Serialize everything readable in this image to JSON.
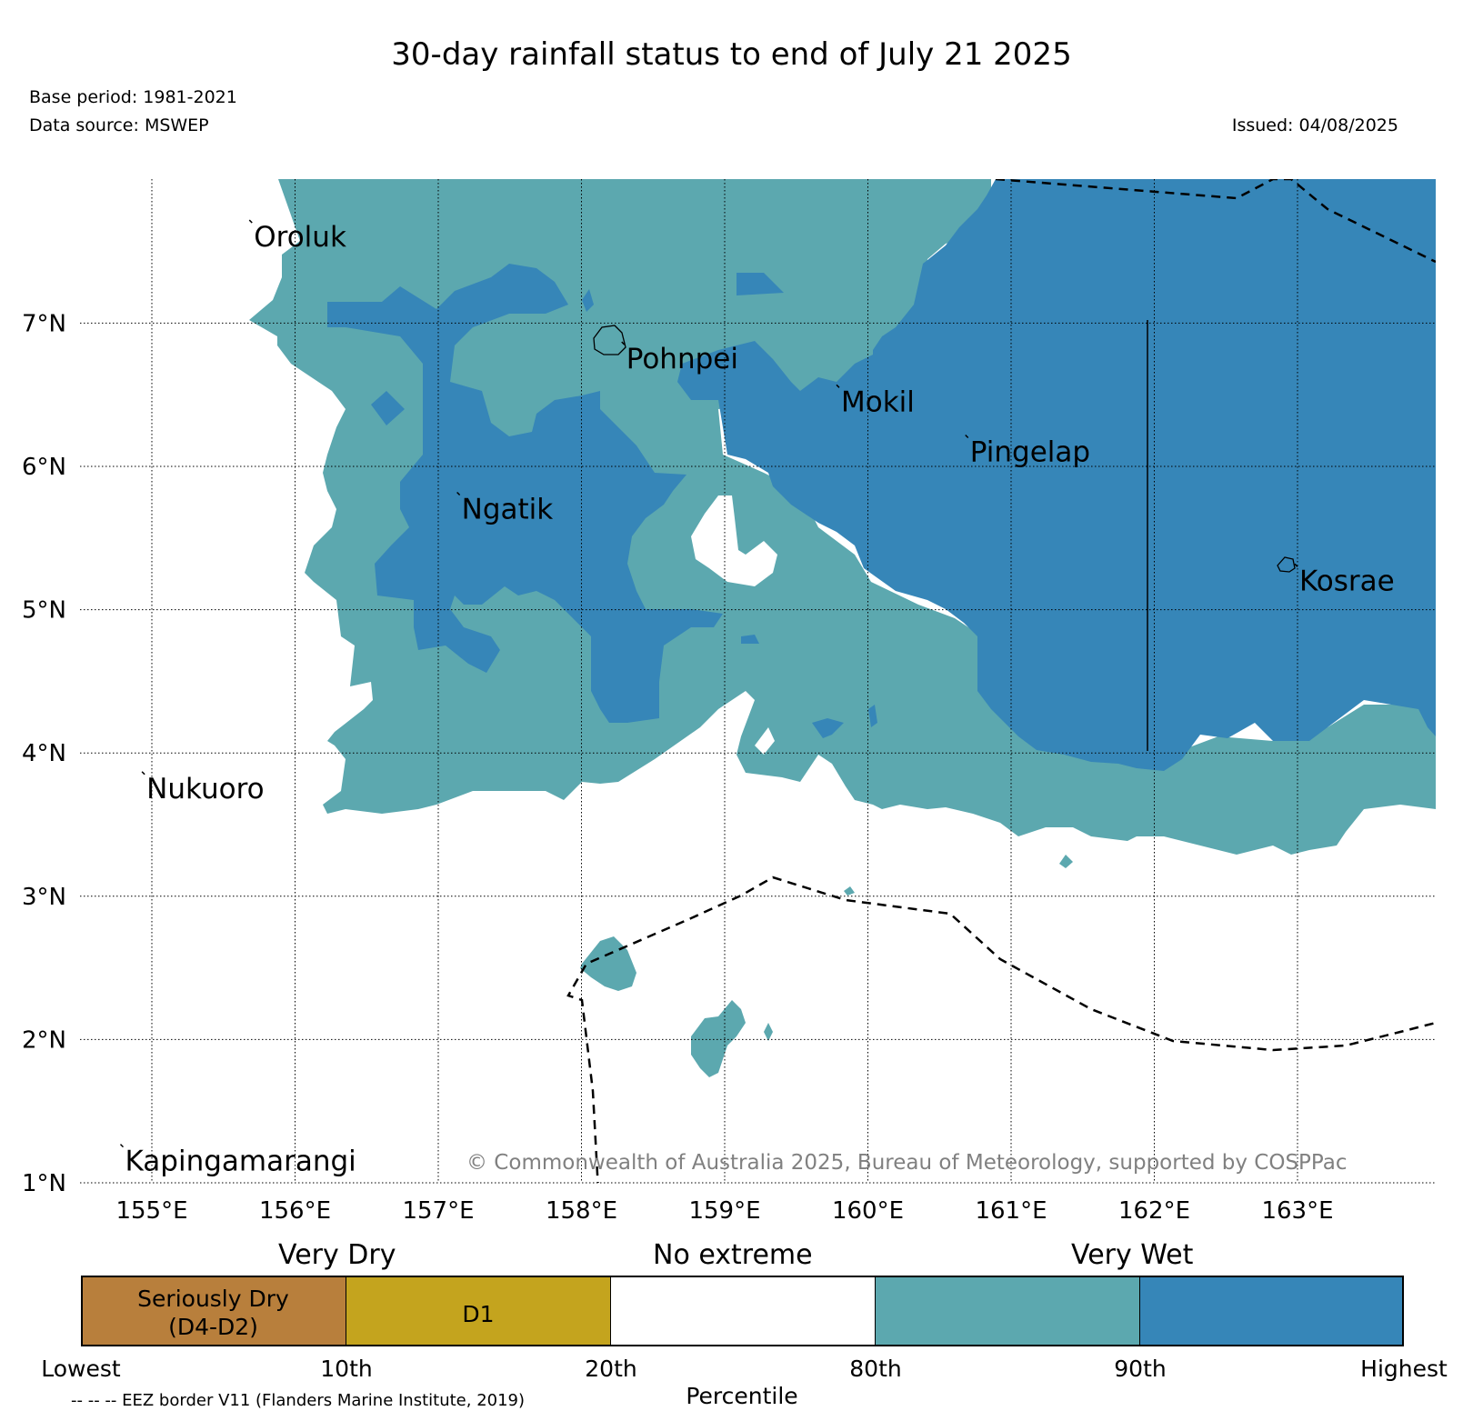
{
  "title": "30-day rainfall status to end of July 21 2025",
  "base_period": "Base period: 1981-2021",
  "data_source": "Data source: MSWEP",
  "issued": "Issued: 04/08/2025",
  "copyright": "© Commonwealth of Australia 2025, Bureau of Meteorology, supported by COSPPac",
  "axes": {
    "lon_ticks": [
      "155°E",
      "156°E",
      "157°E",
      "158°E",
      "159°E",
      "160°E",
      "161°E",
      "162°E",
      "163°E"
    ],
    "lat_ticks": [
      "1°N",
      "2°N",
      "3°N",
      "4°N",
      "5°N",
      "6°N",
      "7°N"
    ],
    "lon_range": [
      154.55,
      164.0
    ],
    "lat_range": [
      1.0,
      8.0
    ]
  },
  "places": [
    {
      "name": "Oroluk",
      "lon": 155.7,
      "lat": 7.7
    },
    {
      "name": "Pohnpei",
      "lon": 158.3,
      "lat": 6.85
    },
    {
      "name": "Mokil",
      "lon": 159.8,
      "lat": 6.55
    },
    {
      "name": "Pingelap",
      "lon": 160.7,
      "lat": 6.2
    },
    {
      "name": "Ngatik",
      "lon": 157.15,
      "lat": 5.8
    },
    {
      "name": "Kosrae",
      "lon": 163.0,
      "lat": 5.3
    },
    {
      "name": "Nukuoro",
      "lon": 154.95,
      "lat": 3.85
    },
    {
      "name": "Kapingamarangi",
      "lon": 154.8,
      "lat": 1.25
    }
  ],
  "colors": {
    "seriously_dry": "#b87f3c",
    "d1": "#c4a41e",
    "no_extreme": "#ffffff",
    "very_wet_80": "#5ca8af",
    "very_wet_90": "#3686b8"
  },
  "legend": {
    "group_labels": [
      "Very Dry",
      "No extreme",
      "Very Wet"
    ],
    "segment_labels": [
      "Seriously Dry\n(D4-D2)",
      "D1",
      "",
      "",
      ""
    ],
    "percentile_ticks": [
      "Lowest",
      "10th",
      "20th",
      "80th",
      "90th",
      "Highest"
    ],
    "axis_label": "Percentile",
    "eez_note": "-- -- -- EEZ border V11 (Flanders Marine Institute, 2019)"
  }
}
